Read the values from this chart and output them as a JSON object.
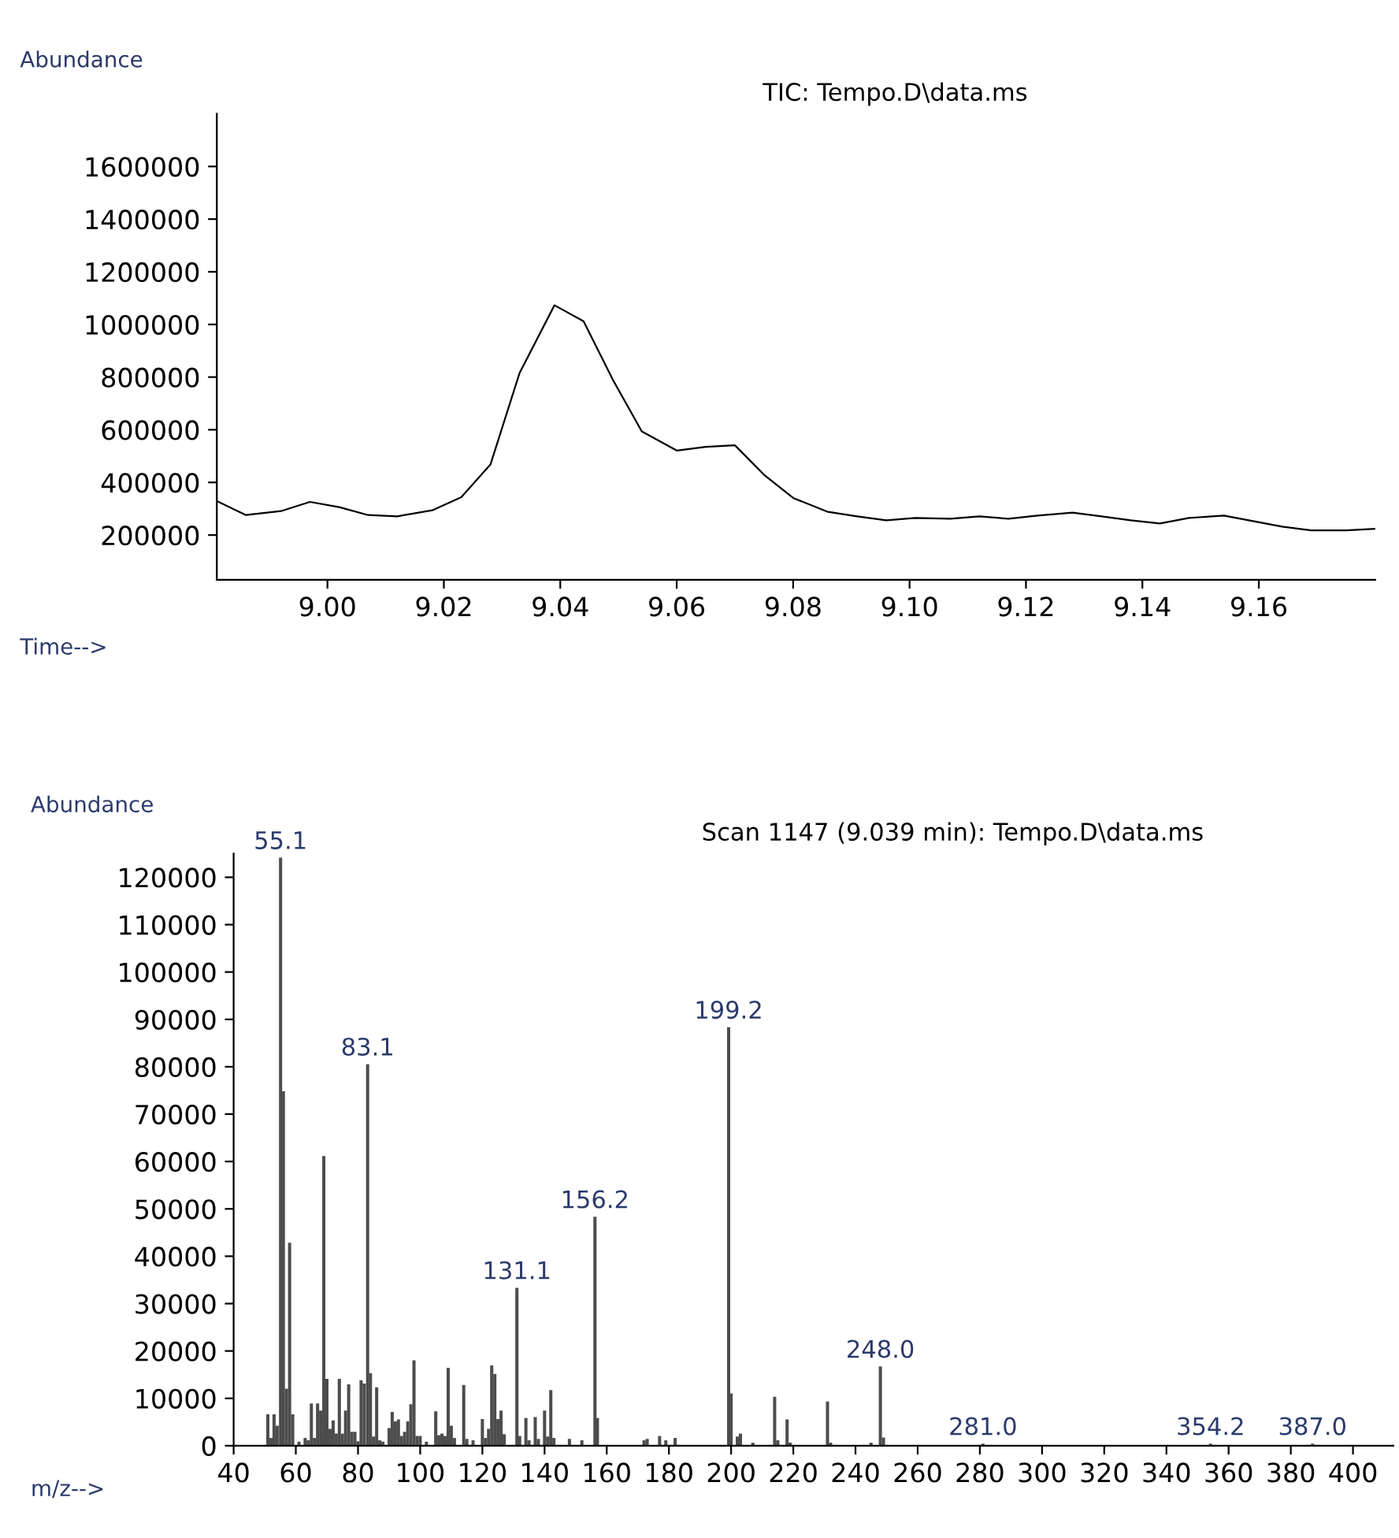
{
  "chart_data": [
    {
      "type": "line",
      "title": "TIC: Tempo.D\\data.ms",
      "xlabel": "Time-->",
      "ylabel": "Abundance",
      "x": [
        8.981,
        8.986,
        8.992,
        8.997,
        9.002,
        9.007,
        9.012,
        9.018,
        9.023,
        9.028,
        9.033,
        9.039,
        9.044,
        9.049,
        9.054,
        9.06,
        9.065,
        9.07,
        9.075,
        9.08,
        9.086,
        9.091,
        9.096,
        9.101,
        9.107,
        9.112,
        9.117,
        9.122,
        9.128,
        9.133,
        9.138,
        9.143,
        9.148,
        9.154,
        9.159,
        9.164,
        9.169,
        9.175,
        9.18
      ],
      "series": [
        {
          "color": "#000000",
          "values": [
            329000,
            276000,
            291000,
            326000,
            306000,
            276000,
            271000,
            294000,
            344000,
            468000,
            815000,
            1073000,
            1012000,
            791000,
            594000,
            521000,
            535000,
            541000,
            429000,
            341000,
            288000,
            271000,
            256000,
            265000,
            262000,
            271000,
            262000,
            274000,
            285000,
            271000,
            256000,
            244000,
            265000,
            274000,
            253000,
            232000,
            218000,
            218000,
            224000
          ]
        }
      ],
      "xlim": [
        8.981,
        9.18
      ],
      "ylim": [
        30000,
        1800000
      ],
      "xticks": [
        {
          "value": 9.0,
          "label": "9.00"
        },
        {
          "value": 9.02,
          "label": "9.02"
        },
        {
          "value": 9.04,
          "label": "9.04"
        },
        {
          "value": 9.06,
          "label": "9.06"
        },
        {
          "value": 9.08,
          "label": "9.08"
        },
        {
          "value": 9.1,
          "label": "9.10"
        },
        {
          "value": 9.12,
          "label": "9.12"
        },
        {
          "value": 9.14,
          "label": "9.14"
        },
        {
          "value": 9.16,
          "label": "9.16"
        }
      ],
      "yticks": [
        200000,
        400000,
        600000,
        800000,
        1000000,
        1200000,
        1400000,
        1600000
      ],
      "grid": false,
      "legend": false,
      "marker": "none",
      "line_style": "solid"
    },
    {
      "type": "bar",
      "title": "Scan 1147 (9.039 min): Tempo.D\\data.ms",
      "xlabel": "m/z-->",
      "ylabel": "Abundance",
      "x": [
        51,
        52,
        53,
        54,
        55.1,
        56,
        57,
        58,
        59,
        61,
        63,
        64,
        65,
        66,
        67,
        68,
        69,
        70,
        71,
        72,
        73,
        74,
        75,
        76,
        77,
        78,
        79,
        80,
        81,
        82,
        83.1,
        84,
        85,
        86,
        87,
        88,
        90,
        91,
        92,
        93,
        94,
        95,
        96,
        97,
        98,
        99,
        100,
        102,
        105,
        106,
        107,
        108,
        109,
        110,
        111,
        114,
        115,
        117,
        120,
        121,
        122,
        123,
        124,
        125,
        126,
        127,
        131.1,
        132,
        134,
        135,
        137,
        138,
        140,
        141,
        142,
        143,
        148,
        152,
        156.2,
        157,
        172,
        173,
        177,
        179,
        182,
        199.2,
        200,
        202,
        203,
        207,
        214,
        215,
        218,
        219,
        231,
        232,
        245,
        248.0,
        249,
        281.0,
        354.2,
        387.0
      ],
      "series": [
        {
          "color": "#4d4d4d",
          "values": [
            6500,
            1500,
            6500,
            4100,
            124000,
            74700,
            11900,
            42700,
            6500,
            700,
            1500,
            1000,
            8800,
            1500,
            8800,
            7300,
            61000,
            14000,
            3400,
            5200,
            2400,
            14000,
            2400,
            7300,
            12800,
            2800,
            2800,
            800,
            13700,
            13000,
            80400,
            15200,
            1800,
            12200,
            1000,
            700,
            3600,
            7000,
            5000,
            5400,
            1900,
            2800,
            5000,
            8600,
            17900,
            1900,
            1900,
            700,
            7100,
            2100,
            2400,
            1900,
            16300,
            4100,
            1500,
            12700,
            1300,
            1000,
            5500,
            1500,
            3400,
            16800,
            15000,
            5500,
            7300,
            2300,
            33200,
            1900,
            5700,
            1000,
            5900,
            1300,
            7300,
            1800,
            11600,
            1500,
            1300,
            1000,
            48200,
            5700,
            1000,
            1300,
            1900,
            1000,
            1500,
            88200,
            10900,
            1800,
            2400,
            500,
            10200,
            1000,
            5400,
            500,
            9200,
            500,
            500,
            16600,
            1600,
            300,
            300,
            300
          ]
        }
      ],
      "annotations": [
        {
          "text": "55.1",
          "x": 55.1,
          "y": 124000
        },
        {
          "text": "83.1",
          "x": 83.1,
          "y": 80400
        },
        {
          "text": "131.1",
          "x": 131.1,
          "y": 33200
        },
        {
          "text": "156.2",
          "x": 156.2,
          "y": 48200
        },
        {
          "text": "199.2",
          "x": 199.2,
          "y": 88200
        },
        {
          "text": "248.0",
          "x": 248.0,
          "y": 16600
        },
        {
          "text": "281.0",
          "x": 281.0,
          "y": 300
        },
        {
          "text": "354.2",
          "x": 354.2,
          "y": 300
        },
        {
          "text": "387.0",
          "x": 387.0,
          "y": 300
        }
      ],
      "xlim": [
        40,
        413
      ],
      "ylim": [
        0,
        125000
      ],
      "xticks": [
        40,
        60,
        80,
        100,
        120,
        140,
        160,
        180,
        200,
        220,
        240,
        260,
        280,
        300,
        320,
        340,
        360,
        380,
        400
      ],
      "yticks": [
        0,
        10000,
        20000,
        30000,
        40000,
        50000,
        60000,
        70000,
        80000,
        90000,
        100000,
        110000,
        120000
      ],
      "grid": false,
      "legend": false
    }
  ]
}
